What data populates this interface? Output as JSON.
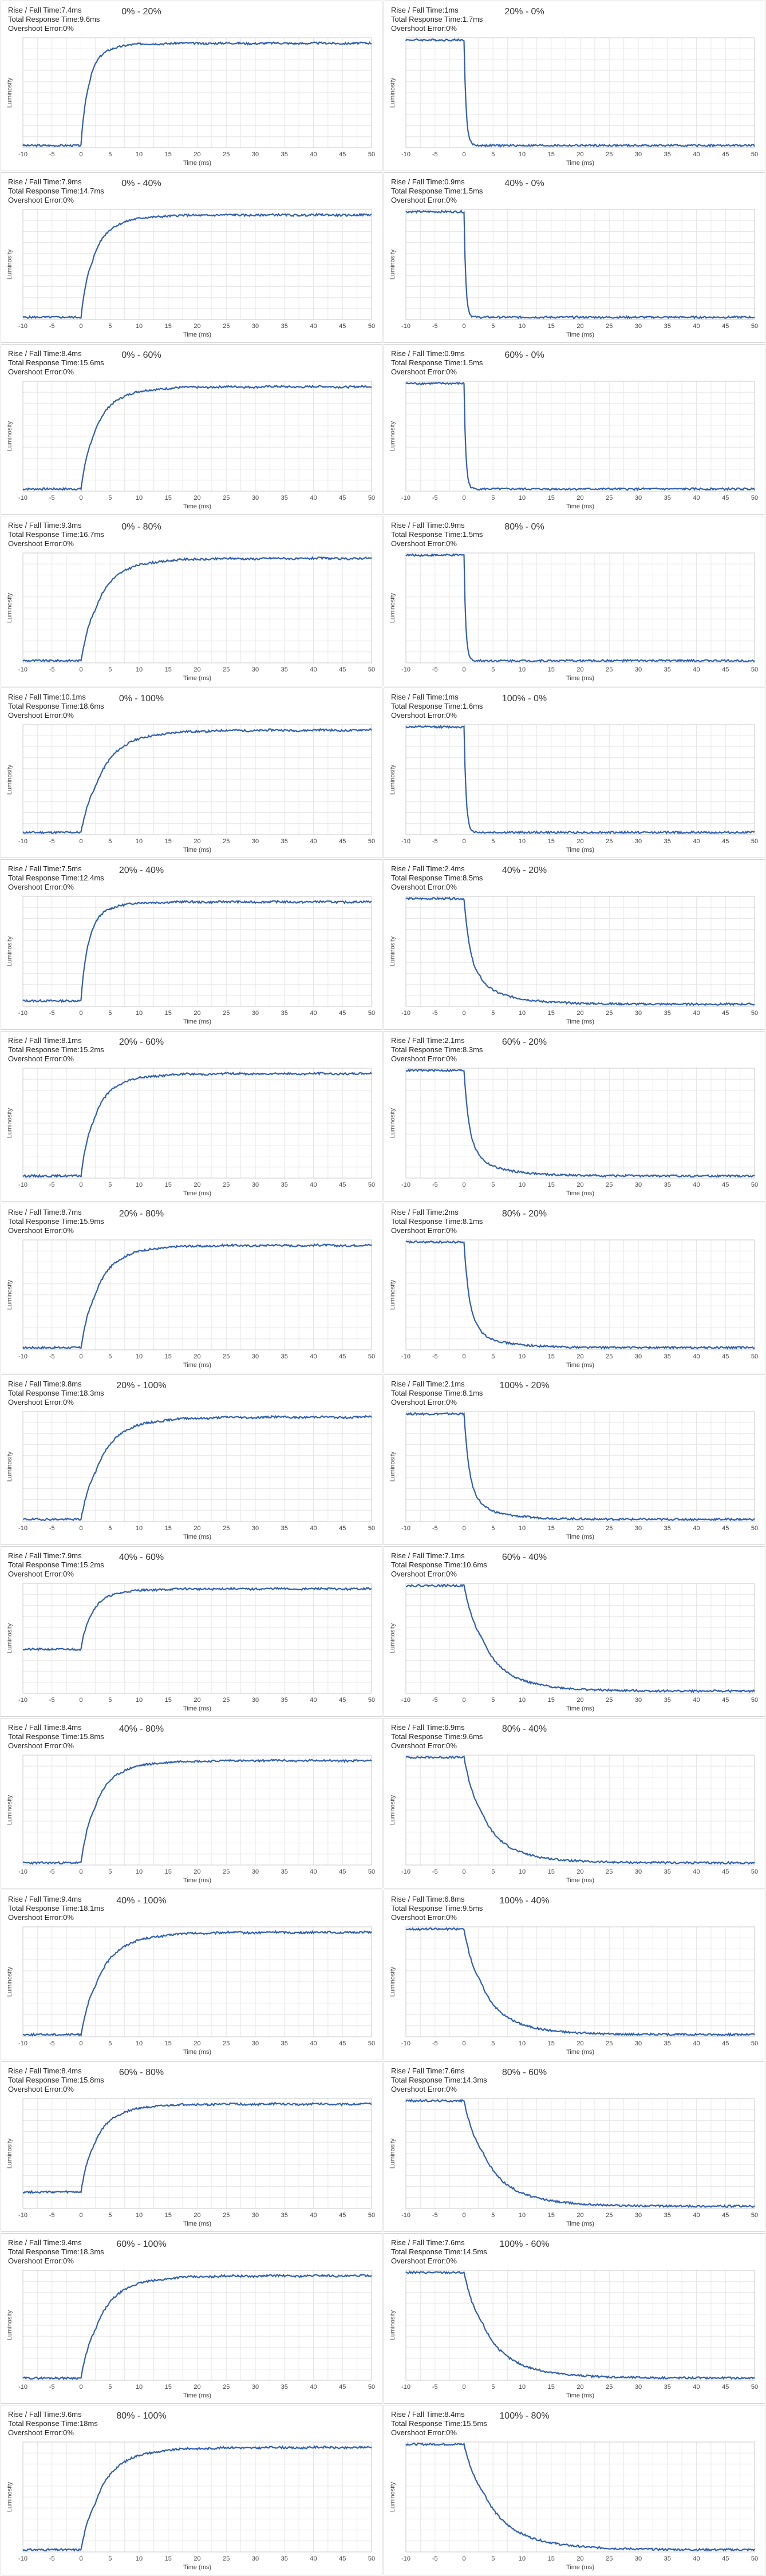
{
  "axis": {
    "xlabel": "Time (ms)",
    "ylabel": "Luminosity",
    "xticks": [
      "-10",
      "-5",
      "0",
      "5",
      "10",
      "15",
      "20",
      "25",
      "30",
      "35",
      "40",
      "45",
      "50"
    ]
  },
  "labels": {
    "rise_fall": "Rise / Fall Time:",
    "total": "Total Response Time:",
    "overshoot": "Overshoot Error:"
  },
  "colors": {
    "line": "#2f5fb3",
    "grid": "#e6e6e6",
    "axis": "#c8c8c8"
  },
  "chart_data": [
    {
      "type": "line",
      "title": "0% - 20%",
      "rise_fall": "7.4ms",
      "total": "9.6ms",
      "overshoot": "0%",
      "xlim": [
        -10,
        50
      ],
      "ylim": [
        0,
        1
      ],
      "start": 0.02,
      "end": 0.95,
      "step": 0.8,
      "tau": 1.0,
      "knee": 1.4,
      "tail": 0.06
    },
    {
      "type": "line",
      "title": "20% - 0%",
      "rise_fall": "1ms",
      "total": "1.7ms",
      "overshoot": "0%",
      "xlim": [
        -10,
        50
      ],
      "ylim": [
        0,
        1
      ],
      "start": 0.98,
      "end": 0.02,
      "step": 1.0,
      "tau": 0.35,
      "knee": 0.8,
      "tail": 0.0
    },
    {
      "type": "line",
      "title": "0% - 40%",
      "rise_fall": "7.9ms",
      "total": "14.7ms",
      "overshoot": "0%",
      "xlim": [
        -10,
        50
      ],
      "ylim": [
        0,
        1
      ],
      "start": 0.02,
      "end": 0.95,
      "step": 0.75,
      "tau": 1.5,
      "knee": 2.0,
      "tail": 0.06
    },
    {
      "type": "line",
      "title": "40% - 0%",
      "rise_fall": "0.9ms",
      "total": "1.5ms",
      "overshoot": "0%",
      "xlim": [
        -10,
        50
      ],
      "ylim": [
        0,
        1
      ],
      "start": 0.98,
      "end": 0.02,
      "step": 1.0,
      "tau": 0.3,
      "knee": 0.8,
      "tail": 0.0
    },
    {
      "type": "line",
      "title": "0% - 60%",
      "rise_fall": "8.4ms",
      "total": "15.6ms",
      "overshoot": "0%",
      "xlim": [
        -10,
        50
      ],
      "ylim": [
        0,
        1
      ],
      "start": 0.02,
      "end": 0.95,
      "step": 0.72,
      "tau": 1.7,
      "knee": 2.2,
      "tail": 0.07
    },
    {
      "type": "line",
      "title": "60% - 0%",
      "rise_fall": "0.9ms",
      "total": "1.5ms",
      "overshoot": "0%",
      "xlim": [
        -10,
        50
      ],
      "ylim": [
        0,
        1
      ],
      "start": 0.98,
      "end": 0.02,
      "step": 1.0,
      "tau": 0.3,
      "knee": 0.8,
      "tail": 0.0
    },
    {
      "type": "line",
      "title": "0% - 80%",
      "rise_fall": "9.3ms",
      "total": "16.7ms",
      "overshoot": "0%",
      "xlim": [
        -10,
        50
      ],
      "ylim": [
        0,
        1
      ],
      "start": 0.02,
      "end": 0.95,
      "step": 0.7,
      "tau": 2.0,
      "knee": 2.4,
      "tail": 0.08
    },
    {
      "type": "line",
      "title": "80% - 0%",
      "rise_fall": "0.9ms",
      "total": "1.5ms",
      "overshoot": "0%",
      "xlim": [
        -10,
        50
      ],
      "ylim": [
        0,
        1
      ],
      "start": 0.98,
      "end": 0.02,
      "step": 1.0,
      "tau": 0.3,
      "knee": 0.8,
      "tail": 0.0
    },
    {
      "type": "line",
      "title": "0% - 100%",
      "rise_fall": "10.1ms",
      "total": "18.6ms",
      "overshoot": "0%",
      "xlim": [
        -10,
        50
      ],
      "ylim": [
        0,
        1
      ],
      "start": 0.02,
      "end": 0.95,
      "step": 0.68,
      "tau": 2.3,
      "knee": 2.6,
      "tail": 0.09
    },
    {
      "type": "line",
      "title": "100% - 0%",
      "rise_fall": "1ms",
      "total": "1.6ms",
      "overshoot": "0%",
      "xlim": [
        -10,
        50
      ],
      "ylim": [
        0,
        1
      ],
      "start": 0.98,
      "end": 0.02,
      "step": 1.0,
      "tau": 0.35,
      "knee": 0.8,
      "tail": 0.0
    },
    {
      "type": "line",
      "title": "20% - 40%",
      "rise_fall": "7.5ms",
      "total": "12.4ms",
      "overshoot": "0%",
      "xlim": [
        -10,
        50
      ],
      "ylim": [
        0,
        1
      ],
      "start": 0.05,
      "end": 0.95,
      "step": 0.8,
      "tau": 1.0,
      "knee": 1.5,
      "tail": 0.06
    },
    {
      "type": "line",
      "title": "40% - 20%",
      "rise_fall": "2.4ms",
      "total": "8.5ms",
      "overshoot": "0%",
      "xlim": [
        -10,
        50
      ],
      "ylim": [
        0,
        1
      ],
      "start": 0.98,
      "end": 0.02,
      "step": 0.82,
      "tau": 1.2,
      "knee": 2.8,
      "tail": 0.06
    },
    {
      "type": "line",
      "title": "20% - 60%",
      "rise_fall": "8.1ms",
      "total": "15.2ms",
      "overshoot": "0%",
      "xlim": [
        -10,
        50
      ],
      "ylim": [
        0,
        1
      ],
      "start": 0.02,
      "end": 0.95,
      "step": 0.72,
      "tau": 1.6,
      "knee": 2.1,
      "tail": 0.07
    },
    {
      "type": "line",
      "title": "60% - 20%",
      "rise_fall": "2.1ms",
      "total": "8.3ms",
      "overshoot": "0%",
      "xlim": [
        -10,
        50
      ],
      "ylim": [
        0,
        1
      ],
      "start": 0.98,
      "end": 0.02,
      "step": 0.86,
      "tau": 1.0,
      "knee": 2.6,
      "tail": 0.05
    },
    {
      "type": "line",
      "title": "20% - 80%",
      "rise_fall": "8.7ms",
      "total": "15.9ms",
      "overshoot": "0%",
      "xlim": [
        -10,
        50
      ],
      "ylim": [
        0,
        1
      ],
      "start": 0.02,
      "end": 0.95,
      "step": 0.7,
      "tau": 1.9,
      "knee": 2.3,
      "tail": 0.08
    },
    {
      "type": "line",
      "title": "80% - 20%",
      "rise_fall": "2ms",
      "total": "8.1ms",
      "overshoot": "0%",
      "xlim": [
        -10,
        50
      ],
      "ylim": [
        0,
        1
      ],
      "start": 0.98,
      "end": 0.02,
      "step": 0.88,
      "tau": 1.0,
      "knee": 2.5,
      "tail": 0.05
    },
    {
      "type": "line",
      "title": "20% - 100%",
      "rise_fall": "9.8ms",
      "total": "18.3ms",
      "overshoot": "0%",
      "xlim": [
        -10,
        50
      ],
      "ylim": [
        0,
        1
      ],
      "start": 0.02,
      "end": 0.95,
      "step": 0.68,
      "tau": 2.2,
      "knee": 2.5,
      "tail": 0.09
    },
    {
      "type": "line",
      "title": "100% - 20%",
      "rise_fall": "2.1ms",
      "total": "8.1ms",
      "overshoot": "0%",
      "xlim": [
        -10,
        50
      ],
      "ylim": [
        0,
        1
      ],
      "start": 0.98,
      "end": 0.02,
      "step": 0.88,
      "tau": 1.0,
      "knee": 2.5,
      "tail": 0.05
    },
    {
      "type": "line",
      "title": "40% - 60%",
      "rise_fall": "7.9ms",
      "total": "15.2ms",
      "overshoot": "0%",
      "xlim": [
        -10,
        50
      ],
      "ylim": [
        0,
        1
      ],
      "start": 0.4,
      "end": 0.95,
      "step": 0.78,
      "tau": 1.3,
      "knee": 1.9,
      "tail": 0.06
    },
    {
      "type": "line",
      "title": "60% - 40%",
      "rise_fall": "7.1ms",
      "total": "10.6ms",
      "overshoot": "0%",
      "xlim": [
        -10,
        50
      ],
      "ylim": [
        0,
        1
      ],
      "start": 0.98,
      "end": 0.02,
      "step": 0.7,
      "tau": 2.5,
      "knee": 3.0,
      "tail": 0.1
    },
    {
      "type": "line",
      "title": "40% - 80%",
      "rise_fall": "8.4ms",
      "total": "15.8ms",
      "overshoot": "0%",
      "xlim": [
        -10,
        50
      ],
      "ylim": [
        0,
        1
      ],
      "start": 0.02,
      "end": 0.95,
      "step": 0.7,
      "tau": 1.7,
      "knee": 2.2,
      "tail": 0.07
    },
    {
      "type": "line",
      "title": "80% - 40%",
      "rise_fall": "6.9ms",
      "total": "9.6ms",
      "overshoot": "0%",
      "xlim": [
        -10,
        50
      ],
      "ylim": [
        0,
        1
      ],
      "start": 0.98,
      "end": 0.02,
      "step": 0.7,
      "tau": 2.3,
      "knee": 2.9,
      "tail": 0.09
    },
    {
      "type": "line",
      "title": "40% - 100%",
      "rise_fall": "9.4ms",
      "total": "18.1ms",
      "overshoot": "0%",
      "xlim": [
        -10,
        50
      ],
      "ylim": [
        0,
        1
      ],
      "start": 0.02,
      "end": 0.95,
      "step": 0.68,
      "tau": 2.1,
      "knee": 2.5,
      "tail": 0.09
    },
    {
      "type": "line",
      "title": "100% - 40%",
      "rise_fall": "6.8ms",
      "total": "9.5ms",
      "overshoot": "0%",
      "xlim": [
        -10,
        50
      ],
      "ylim": [
        0,
        1
      ],
      "start": 0.98,
      "end": 0.02,
      "step": 0.7,
      "tau": 2.3,
      "knee": 2.9,
      "tail": 0.09
    },
    {
      "type": "line",
      "title": "60% - 80%",
      "rise_fall": "8.4ms",
      "total": "15.8ms",
      "overshoot": "0%",
      "xlim": [
        -10,
        50
      ],
      "ylim": [
        0,
        1
      ],
      "start": 0.15,
      "end": 0.95,
      "step": 0.72,
      "tau": 1.7,
      "knee": 2.2,
      "tail": 0.07
    },
    {
      "type": "line",
      "title": "80% - 60%",
      "rise_fall": "7.6ms",
      "total": "14.3ms",
      "overshoot": "0%",
      "xlim": [
        -10,
        50
      ],
      "ylim": [
        0,
        1
      ],
      "start": 0.98,
      "end": 0.02,
      "step": 0.68,
      "tau": 2.6,
      "knee": 3.2,
      "tail": 0.12
    },
    {
      "type": "line",
      "title": "60% - 100%",
      "rise_fall": "9.4ms",
      "total": "18.3ms",
      "overshoot": "0%",
      "xlim": [
        -10,
        50
      ],
      "ylim": [
        0,
        1
      ],
      "start": 0.02,
      "end": 0.95,
      "step": 0.68,
      "tau": 2.1,
      "knee": 2.5,
      "tail": 0.09
    },
    {
      "type": "line",
      "title": "100% - 60%",
      "rise_fall": "7.6ms",
      "total": "14.5ms",
      "overshoot": "0%",
      "xlim": [
        -10,
        50
      ],
      "ylim": [
        0,
        1
      ],
      "start": 0.98,
      "end": 0.02,
      "step": 0.68,
      "tau": 2.6,
      "knee": 3.2,
      "tail": 0.12
    },
    {
      "type": "line",
      "title": "80% - 100%",
      "rise_fall": "9.6ms",
      "total": "18ms",
      "overshoot": "0%",
      "xlim": [
        -10,
        50
      ],
      "ylim": [
        0,
        1
      ],
      "start": 0.02,
      "end": 0.95,
      "step": 0.68,
      "tau": 2.2,
      "knee": 2.5,
      "tail": 0.09
    },
    {
      "type": "line",
      "title": "100% - 80%",
      "rise_fall": "8.4ms",
      "total": "15.5ms",
      "overshoot": "0%",
      "xlim": [
        -10,
        50
      ],
      "ylim": [
        0,
        1
      ],
      "start": 0.98,
      "end": 0.02,
      "step": 0.65,
      "tau": 2.8,
      "knee": 3.4,
      "tail": 0.13
    }
  ]
}
